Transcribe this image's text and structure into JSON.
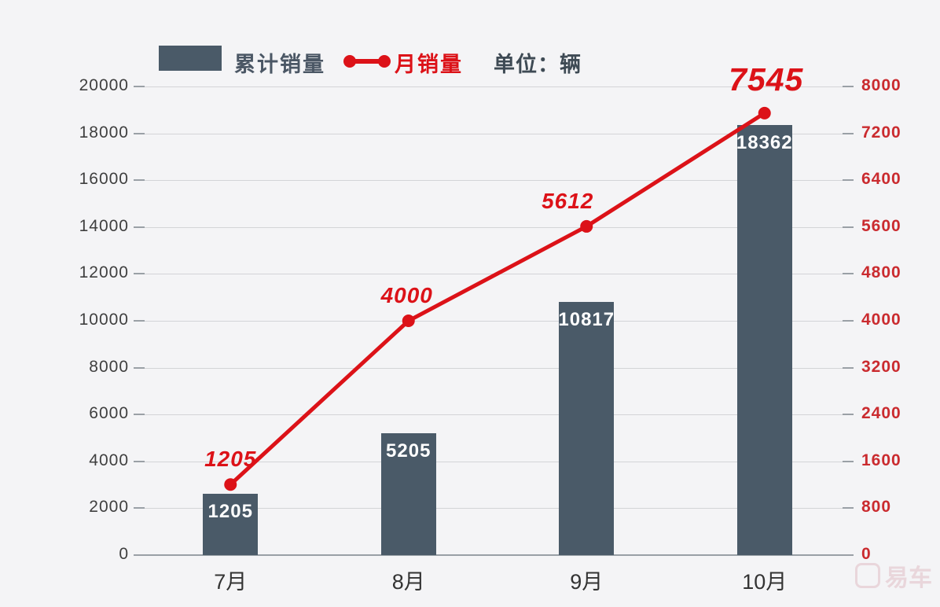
{
  "legend": {
    "bar_label": "累计销量",
    "line_label": "月销量",
    "unit_label": "单位：辆"
  },
  "watermark": "易车",
  "colors": {
    "background": "#f4f4f6",
    "bar": "#4a5a68",
    "bar_value_text": "#ffffff",
    "line": "#dc1218",
    "point_label_text": "#dc1218",
    "left_axis_text": "#3f3f3f",
    "right_axis_text": "#ca2b2f",
    "x_axis_text": "#333333",
    "legend_bar_text": "#4b5765",
    "unit_text": "#3e4a54",
    "gridline": "#d3d4d7",
    "axis_line": "#99a0a6"
  },
  "chart_data": {
    "type": "bar",
    "subtype": "bar+line combo",
    "categories": [
      "7月",
      "8月",
      "9月",
      "10月"
    ],
    "series": [
      {
        "name": "累计销量",
        "type": "bar",
        "axis": "left",
        "values": [
          1205,
          5205,
          10817,
          18362
        ]
      },
      {
        "name": "月销量",
        "type": "line",
        "axis": "right",
        "values": [
          1205,
          4000,
          5612,
          7545
        ]
      }
    ],
    "left_axis": {
      "min": 0,
      "max": 20000,
      "tick_step": 2000,
      "ticks": [
        0,
        2000,
        4000,
        6000,
        8000,
        10000,
        12000,
        14000,
        16000,
        18000,
        20000
      ]
    },
    "right_axis": {
      "min": 0,
      "max": 8000,
      "tick_step": 800,
      "ticks": [
        0,
        800,
        1600,
        2400,
        3200,
        4000,
        4800,
        5600,
        6400,
        7200,
        8000
      ]
    },
    "unit": "辆",
    "grid": true,
    "legend_position": "top"
  }
}
